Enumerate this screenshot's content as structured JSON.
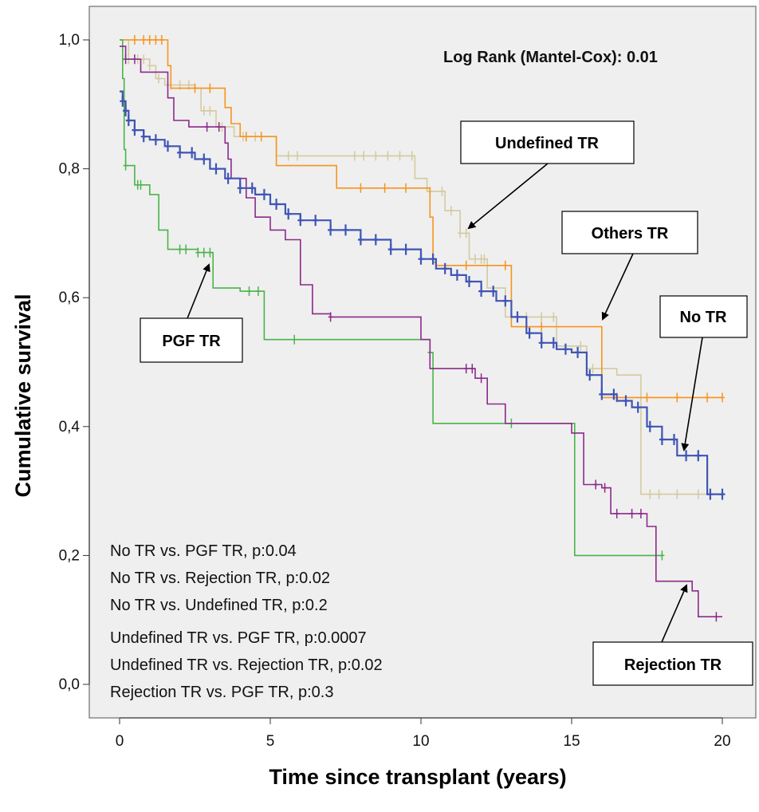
{
  "chart_data": {
    "type": "line",
    "subtype": "kaplan-meier",
    "xlabel": "Time since transplant (years)",
    "ylabel": "Cumulative survival",
    "xlim": [
      0,
      20
    ],
    "ylim": [
      0,
      1
    ],
    "x_ticks": [
      0,
      5,
      10,
      15,
      20
    ],
    "x_tick_labels": [
      "0",
      "5",
      "10",
      "15",
      "20"
    ],
    "y_ticks": [
      0,
      0.2,
      0.4,
      0.6,
      0.8,
      1.0
    ],
    "y_tick_labels": [
      "0,0",
      "0,2",
      "0,4",
      "0,6",
      "0,8",
      "1,0"
    ],
    "grid": false,
    "background": "#efefef",
    "log_rank": "Log Rank (Mantel-Cox): 0.01",
    "comparisons": [
      "No TR vs. PGF TR, p:0.04",
      "No TR vs. Rejection TR, p:0.02",
      "No TR vs. Undefined TR, p:0.2",
      "Undefined TR vs. PGF TR,  p:0.0007",
      "Undefined TR vs. Rejection TR, p:0.02",
      "Rejection TR vs. PGF TR, p:0.3"
    ],
    "series": [
      {
        "name": "No TR",
        "color": "#3f55b5",
        "steps": [
          [
            0,
            0.92
          ],
          [
            0.1,
            0.905
          ],
          [
            0.2,
            0.89
          ],
          [
            0.3,
            0.875
          ],
          [
            0.5,
            0.86
          ],
          [
            0.8,
            0.85
          ],
          [
            1.0,
            0.845
          ],
          [
            1.5,
            0.835
          ],
          [
            2.0,
            0.825
          ],
          [
            2.5,
            0.815
          ],
          [
            3.0,
            0.8
          ],
          [
            3.5,
            0.785
          ],
          [
            4.0,
            0.77
          ],
          [
            4.5,
            0.76
          ],
          [
            5.0,
            0.745
          ],
          [
            5.5,
            0.73
          ],
          [
            6.0,
            0.72
          ],
          [
            7.0,
            0.705
          ],
          [
            8.0,
            0.69
          ],
          [
            9.0,
            0.675
          ],
          [
            10.0,
            0.66
          ],
          [
            10.5,
            0.645
          ],
          [
            11.0,
            0.635
          ],
          [
            11.5,
            0.625
          ],
          [
            12.0,
            0.61
          ],
          [
            12.5,
            0.595
          ],
          [
            13.0,
            0.57
          ],
          [
            13.5,
            0.545
          ],
          [
            14.0,
            0.53
          ],
          [
            14.5,
            0.52
          ],
          [
            15.0,
            0.515
          ],
          [
            15.5,
            0.48
          ],
          [
            16.0,
            0.45
          ],
          [
            16.5,
            0.44
          ],
          [
            17.0,
            0.43
          ],
          [
            17.5,
            0.4
          ],
          [
            18.0,
            0.38
          ],
          [
            18.5,
            0.355
          ],
          [
            19.5,
            0.295
          ],
          [
            20.0,
            0.295
          ]
        ],
        "censor": [
          0.1,
          0.2,
          0.3,
          0.5,
          0.8,
          1.2,
          1.6,
          2.0,
          2.4,
          2.8,
          3.2,
          3.6,
          4.0,
          4.4,
          4.8,
          5.2,
          5.6,
          6.0,
          6.5,
          7.0,
          7.5,
          8.0,
          8.5,
          9.0,
          9.5,
          10.0,
          10.4,
          10.8,
          11.2,
          11.6,
          12.0,
          12.4,
          12.8,
          13.2,
          13.6,
          14.0,
          14.4,
          14.8,
          15.2,
          15.6,
          16.0,
          16.4,
          16.8,
          17.2,
          17.6,
          18.0,
          18.4,
          18.8,
          19.2,
          19.6,
          20.0
        ]
      },
      {
        "name": "Others TR",
        "color": "#f7941d",
        "steps": [
          [
            0,
            1.0
          ],
          [
            1.5,
            1.0
          ],
          [
            1.6,
            0.96
          ],
          [
            1.7,
            0.925
          ],
          [
            3.5,
            0.895
          ],
          [
            3.7,
            0.87
          ],
          [
            4.0,
            0.85
          ],
          [
            5.2,
            0.805
          ],
          [
            7.2,
            0.77
          ],
          [
            10.3,
            0.725
          ],
          [
            10.4,
            0.655
          ],
          [
            10.5,
            0.65
          ],
          [
            13.0,
            0.555
          ],
          [
            16.0,
            0.445
          ],
          [
            20.0,
            0.445
          ]
        ],
        "censor": [
          0.5,
          0.8,
          1.0,
          1.2,
          1.4,
          2.5,
          3.0,
          4.2,
          4.7,
          8.0,
          8.8,
          9.5,
          11.5,
          12.8,
          14.0,
          16.5,
          17.5,
          18.5,
          19.5,
          20.0
        ]
      },
      {
        "name": "Undefined TR",
        "color": "#d4caa0",
        "steps": [
          [
            0,
            1.0
          ],
          [
            0.3,
            0.97
          ],
          [
            1.0,
            0.96
          ],
          [
            1.2,
            0.94
          ],
          [
            1.5,
            0.93
          ],
          [
            2.5,
            0.925
          ],
          [
            2.7,
            0.89
          ],
          [
            3.2,
            0.865
          ],
          [
            3.8,
            0.85
          ],
          [
            5.2,
            0.82
          ],
          [
            9.8,
            0.785
          ],
          [
            10.2,
            0.765
          ],
          [
            10.8,
            0.735
          ],
          [
            11.3,
            0.7
          ],
          [
            11.6,
            0.66
          ],
          [
            12.2,
            0.615
          ],
          [
            12.8,
            0.57
          ],
          [
            14.5,
            0.525
          ],
          [
            15.5,
            0.49
          ],
          [
            16.5,
            0.48
          ],
          [
            17.3,
            0.295
          ],
          [
            19.0,
            0.295
          ],
          [
            20.0,
            0.295
          ]
        ],
        "censor": [
          0.3,
          0.6,
          0.8,
          1.0,
          1.3,
          1.7,
          2.0,
          2.3,
          2.8,
          3.0,
          3.4,
          4.1,
          4.5,
          5.6,
          5.9,
          7.8,
          8.1,
          8.5,
          8.9,
          9.3,
          9.7,
          10.3,
          10.7,
          11.0,
          11.3,
          11.5,
          11.8,
          12.0,
          12.1,
          13.5,
          14.0,
          14.4,
          15.3,
          15.7,
          17.6,
          17.9,
          18.5,
          19.2,
          20.0
        ]
      },
      {
        "name": "Rejection TR",
        "color": "#8b2a8b",
        "steps": [
          [
            0,
            0.99
          ],
          [
            0.2,
            0.97
          ],
          [
            0.7,
            0.95
          ],
          [
            1.6,
            0.91
          ],
          [
            1.8,
            0.875
          ],
          [
            2.3,
            0.865
          ],
          [
            3.5,
            0.84
          ],
          [
            3.6,
            0.815
          ],
          [
            3.7,
            0.785
          ],
          [
            4.2,
            0.755
          ],
          [
            4.5,
            0.725
          ],
          [
            5.0,
            0.705
          ],
          [
            5.5,
            0.69
          ],
          [
            6.0,
            0.62
          ],
          [
            6.4,
            0.575
          ],
          [
            7.0,
            0.57
          ],
          [
            10.0,
            0.535
          ],
          [
            10.3,
            0.49
          ],
          [
            11.8,
            0.475
          ],
          [
            12.2,
            0.435
          ],
          [
            12.8,
            0.405
          ],
          [
            15.0,
            0.39
          ],
          [
            15.4,
            0.31
          ],
          [
            16.0,
            0.305
          ],
          [
            16.3,
            0.265
          ],
          [
            17.5,
            0.245
          ],
          [
            17.8,
            0.16
          ],
          [
            19.0,
            0.145
          ],
          [
            19.2,
            0.105
          ],
          [
            20.0,
            0.105
          ]
        ],
        "censor": [
          0.2,
          0.5,
          2.9,
          3.3,
          7.0,
          11.5,
          11.7,
          12.0,
          15.8,
          16.1,
          16.5,
          17.0,
          17.3,
          19.8
        ]
      },
      {
        "name": "PGF TR",
        "color": "#4ab44a",
        "steps": [
          [
            0,
            1.0
          ],
          [
            0.1,
            0.94
          ],
          [
            0.15,
            0.83
          ],
          [
            0.2,
            0.805
          ],
          [
            0.5,
            0.775
          ],
          [
            1.0,
            0.76
          ],
          [
            1.3,
            0.705
          ],
          [
            1.6,
            0.675
          ],
          [
            2.6,
            0.67
          ],
          [
            3.1,
            0.615
          ],
          [
            4.0,
            0.61
          ],
          [
            4.8,
            0.535
          ],
          [
            10.3,
            0.515
          ],
          [
            10.4,
            0.405
          ],
          [
            15.0,
            0.405
          ],
          [
            15.1,
            0.2
          ],
          [
            18.0,
            0.2
          ]
        ],
        "censor": [
          0.2,
          0.6,
          0.7,
          2.0,
          2.2,
          2.6,
          2.8,
          3.0,
          4.3,
          4.6,
          5.8,
          10.3,
          13.0,
          18.0
        ]
      }
    ],
    "annotations": [
      {
        "text": "Undefined TR",
        "target": "Undefined TR"
      },
      {
        "text": "Others TR",
        "target": "Others TR"
      },
      {
        "text": "No TR",
        "target": "No TR"
      },
      {
        "text": "PGF TR",
        "target": "PGF TR"
      },
      {
        "text": "Rejection TR",
        "target": "Rejection TR"
      }
    ]
  }
}
